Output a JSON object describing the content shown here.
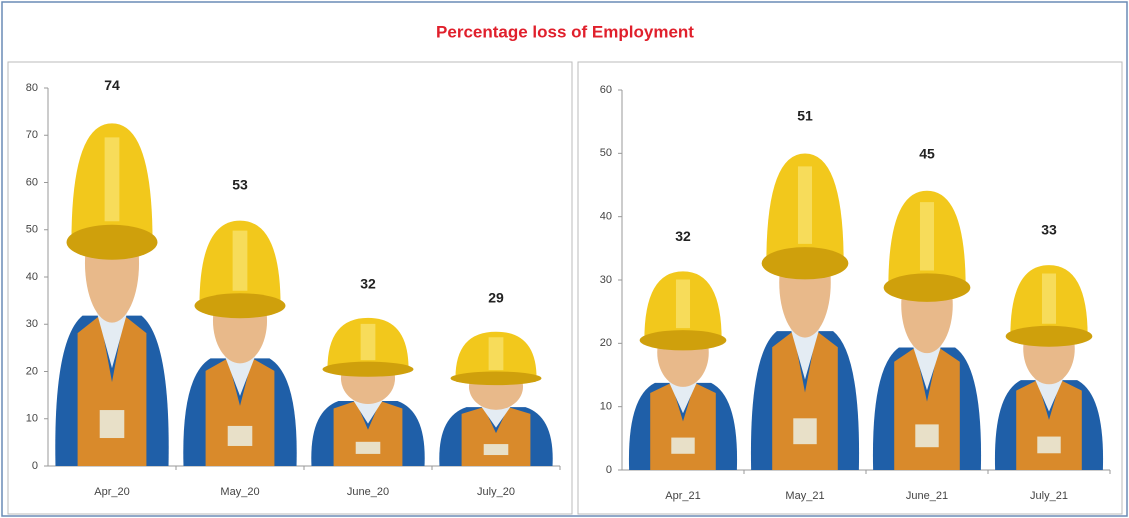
{
  "title": "Percentage loss of Employment",
  "chart_data": [
    {
      "type": "bar",
      "categories": [
        "Apr_20",
        "May_20",
        "June_20",
        "July_20"
      ],
      "values": [
        74,
        53,
        32,
        29
      ],
      "ylim": [
        0,
        80
      ],
      "yticks": [
        0,
        10,
        20,
        30,
        40,
        50,
        60,
        70,
        80
      ]
    },
    {
      "type": "bar",
      "categories": [
        "Apr_21",
        "May_21",
        "June_21",
        "July_21"
      ],
      "values": [
        32,
        51,
        45,
        33
      ],
      "ylim": [
        0,
        60
      ],
      "yticks": [
        0,
        10,
        20,
        30,
        40,
        50,
        60
      ]
    }
  ]
}
